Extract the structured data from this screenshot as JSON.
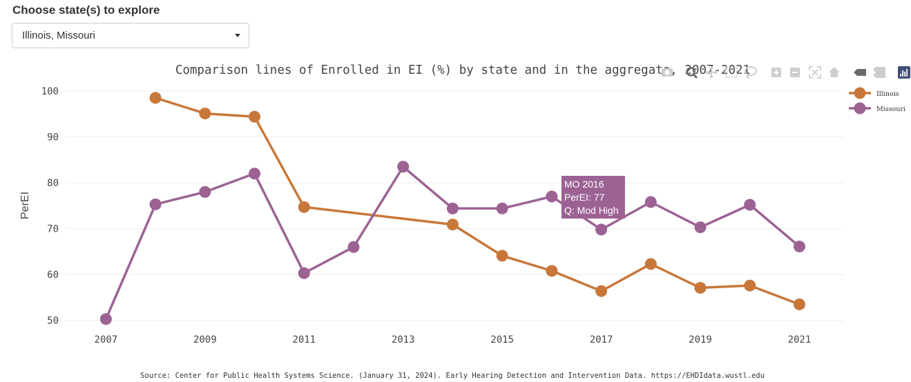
{
  "picker": {
    "label": "Choose state(s) to explore",
    "selected": "Illinois, Missouri"
  },
  "toolbar": {
    "icons": [
      "camera-icon",
      "zoom-icon",
      "pan-icon",
      "box-select-icon",
      "lasso-icon",
      "zoom-in-icon",
      "zoom-out-icon",
      "autoscale-icon",
      "reset-axes-icon",
      "hover-closest-icon",
      "hover-compare-icon",
      "plotly-logo-icon"
    ]
  },
  "source": "Source: Center for Public Health Systems Science. (January 31, 2024). Early Hearing Detection and Intervention Data. https://EHDIdata.wustl.edu",
  "tooltip": {
    "line1": "MO 2016",
    "line2": "PerEI: 77",
    "line3": "Q: Mod High",
    "series": "Missouri",
    "x": 2016,
    "color": "#9c6294"
  },
  "colors": {
    "illinois": "#c8773a",
    "missouri": "#9c6294",
    "grid": "#eeeeee",
    "toolbar_icon": "#cdcdcd",
    "toolbar_active": "#6b6b6b",
    "logo": "#3f4f75"
  },
  "chart_data": {
    "type": "line",
    "title": "Comparison lines of Enrolled in EI (%) by state and in the aggregate, 2007-2021",
    "xlabel": "",
    "ylabel": "PerEI",
    "xlim": [
      2006.2,
      2021.9
    ],
    "ylim": [
      48,
      103
    ],
    "x_ticks": [
      2007,
      2009,
      2011,
      2013,
      2015,
      2017,
      2019,
      2021
    ],
    "y_ticks": [
      50,
      60,
      70,
      80,
      90,
      100
    ],
    "grid": true,
    "legend_position": "top-right",
    "series": [
      {
        "name": "Illinois",
        "color": "#c8773a",
        "x": [
          2008,
          2009,
          2010,
          2011,
          2014,
          2015,
          2016,
          2017,
          2018,
          2019,
          2020,
          2021
        ],
        "values": [
          98.5,
          95.1,
          94.4,
          74.7,
          70.9,
          64.1,
          60.8,
          56.4,
          62.3,
          57.1,
          57.6,
          53.5
        ]
      },
      {
        "name": "Missouri",
        "color": "#9c6294",
        "x": [
          2007,
          2008,
          2009,
          2010,
          2011,
          2012,
          2013,
          2014,
          2015,
          2016,
          2017,
          2018,
          2019,
          2020,
          2021
        ],
        "values": [
          50.3,
          75.3,
          78.0,
          82.0,
          60.3,
          66.0,
          83.5,
          74.4,
          74.4,
          77.0,
          69.8,
          75.8,
          70.3,
          75.2,
          66.1
        ]
      }
    ]
  }
}
